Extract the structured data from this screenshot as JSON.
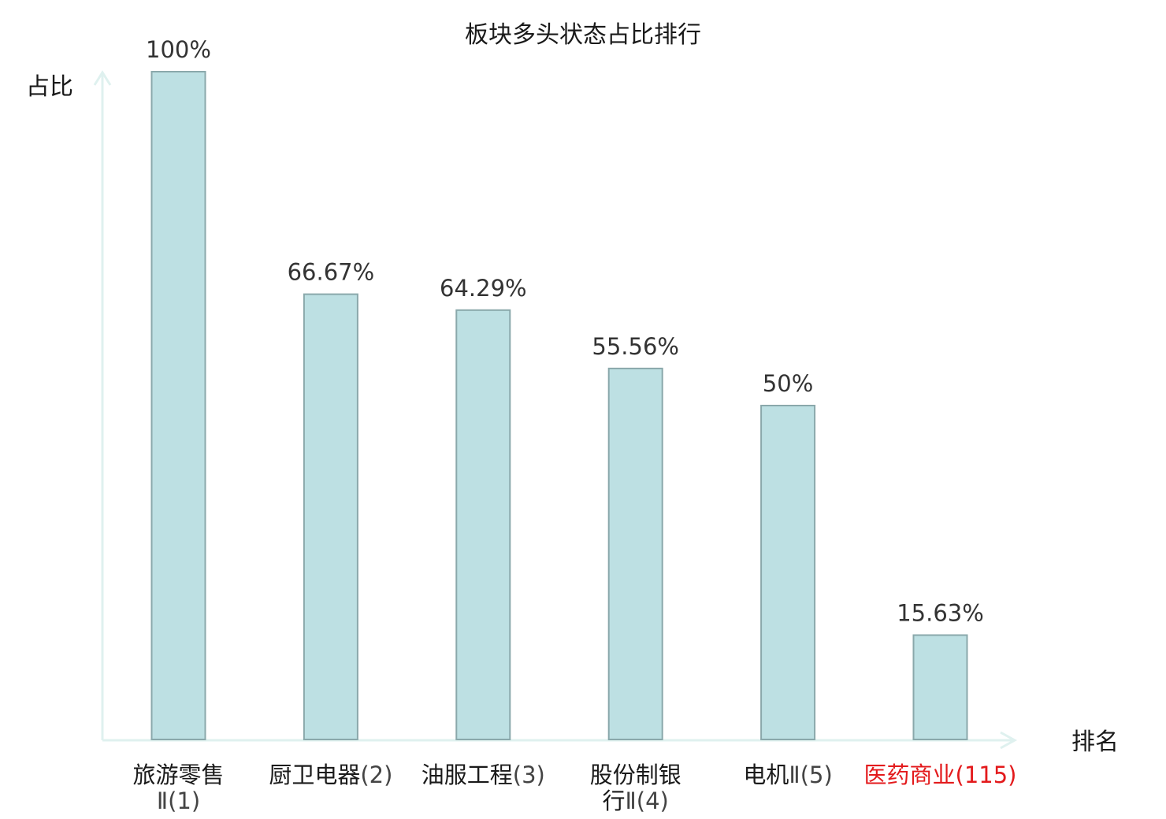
{
  "chart_data": {
    "type": "bar",
    "title": "板块多头状态占比排行",
    "ylabel": "占比",
    "xlabel": "排名",
    "ylim": [
      0,
      100
    ],
    "grid": false,
    "categories": [
      {
        "name": "旅游零售",
        "suffix": "Ⅱ",
        "rank": "(1)",
        "highlight": false
      },
      {
        "name": "厨卫电器",
        "suffix": "",
        "rank": "(2)",
        "highlight": false
      },
      {
        "name": "油服工程",
        "suffix": "",
        "rank": "(3)",
        "highlight": false
      },
      {
        "name": "股份制银行",
        "suffix": "Ⅱ",
        "rank": "(4)",
        "highlight": false
      },
      {
        "name": "电机",
        "suffix": "Ⅱ",
        "rank": "(5)",
        "highlight": false
      },
      {
        "name": "医药商业",
        "suffix": "",
        "rank": "(115)",
        "highlight": true
      }
    ],
    "values": [
      100,
      66.67,
      64.29,
      55.56,
      50,
      15.63
    ],
    "value_labels": [
      "100%",
      "66.67%",
      "64.29%",
      "55.56%",
      "50%",
      "15.63%"
    ]
  },
  "colors": {
    "bar_fill": "#bde0e3",
    "bar_stroke": "#8aa8ab",
    "axis": "#dff1ef",
    "highlight": "#e31a1c",
    "label_main": "#1a1a1a",
    "label_suffix": "#444444"
  }
}
